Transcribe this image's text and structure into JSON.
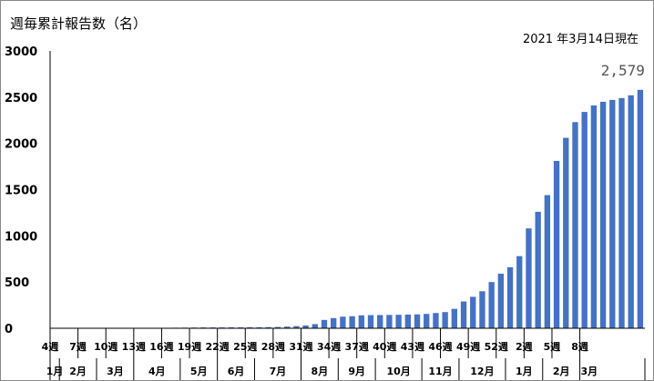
{
  "title": "週毎累計報告数（名）",
  "as_of": "2021 年3月14日現在",
  "colors": {
    "bar": "#4472c4",
    "axis": "#000000",
    "label": "#555555"
  },
  "chart_data": {
    "type": "bar",
    "title": "週毎累計報告数（名）",
    "ylim": [
      0,
      3000
    ],
    "y_ticks": [
      0,
      500,
      1000,
      1500,
      2000,
      2500,
      3000
    ],
    "week_labels": [
      {
        "label": "4週",
        "index": 0
      },
      {
        "label": "7週",
        "index": 3
      },
      {
        "label": "10週",
        "index": 6
      },
      {
        "label": "13週",
        "index": 9
      },
      {
        "label": "16週",
        "index": 12
      },
      {
        "label": "19週",
        "index": 15
      },
      {
        "label": "22週",
        "index": 18
      },
      {
        "label": "25週",
        "index": 21
      },
      {
        "label": "28週",
        "index": 24
      },
      {
        "label": "31週",
        "index": 27
      },
      {
        "label": "34週",
        "index": 30
      },
      {
        "label": "37週",
        "index": 33
      },
      {
        "label": "40週",
        "index": 36
      },
      {
        "label": "43週",
        "index": 39
      },
      {
        "label": "46週",
        "index": 42
      },
      {
        "label": "49週",
        "index": 45
      },
      {
        "label": "52週",
        "index": 48
      },
      {
        "label": "2週",
        "index": 51
      },
      {
        "label": "5週",
        "index": 54
      },
      {
        "label": "8週",
        "index": 57
      }
    ],
    "month_labels": [
      {
        "label": "1月",
        "start": 0,
        "end": 1
      },
      {
        "label": "2月",
        "start": 1,
        "end": 5
      },
      {
        "label": "3月",
        "start": 5,
        "end": 9
      },
      {
        "label": "4月",
        "start": 9,
        "end": 14
      },
      {
        "label": "5月",
        "start": 14,
        "end": 18
      },
      {
        "label": "6月",
        "start": 18,
        "end": 22
      },
      {
        "label": "7月",
        "start": 22,
        "end": 27
      },
      {
        "label": "8月",
        "start": 27,
        "end": 31
      },
      {
        "label": "9月",
        "start": 31,
        "end": 35
      },
      {
        "label": "10月",
        "start": 35,
        "end": 40
      },
      {
        "label": "11月",
        "start": 40,
        "end": 44
      },
      {
        "label": "12月",
        "start": 44,
        "end": 49
      },
      {
        "label": "1月",
        "start": 49,
        "end": 53
      },
      {
        "label": "2月",
        "start": 53,
        "end": 57
      },
      {
        "label": "3月",
        "start": 57,
        "end": 59
      }
    ],
    "values": [
      0,
      0,
      0,
      0,
      0,
      0,
      0,
      0,
      0,
      0,
      0,
      0,
      5,
      6,
      7,
      8,
      9,
      9,
      9,
      10,
      10,
      11,
      11,
      12,
      14,
      18,
      23,
      30,
      45,
      90,
      110,
      125,
      130,
      140,
      142,
      143,
      144,
      146,
      148,
      150,
      155,
      165,
      175,
      210,
      290,
      340,
      400,
      500,
      590,
      660,
      780,
      1080,
      1260,
      1440,
      1810,
      2060,
      2230,
      2340,
      2410,
      2450,
      2470,
      2490,
      2520,
      2579
    ],
    "data_labels": [
      {
        "index": 63,
        "text": "2,579"
      }
    ]
  }
}
